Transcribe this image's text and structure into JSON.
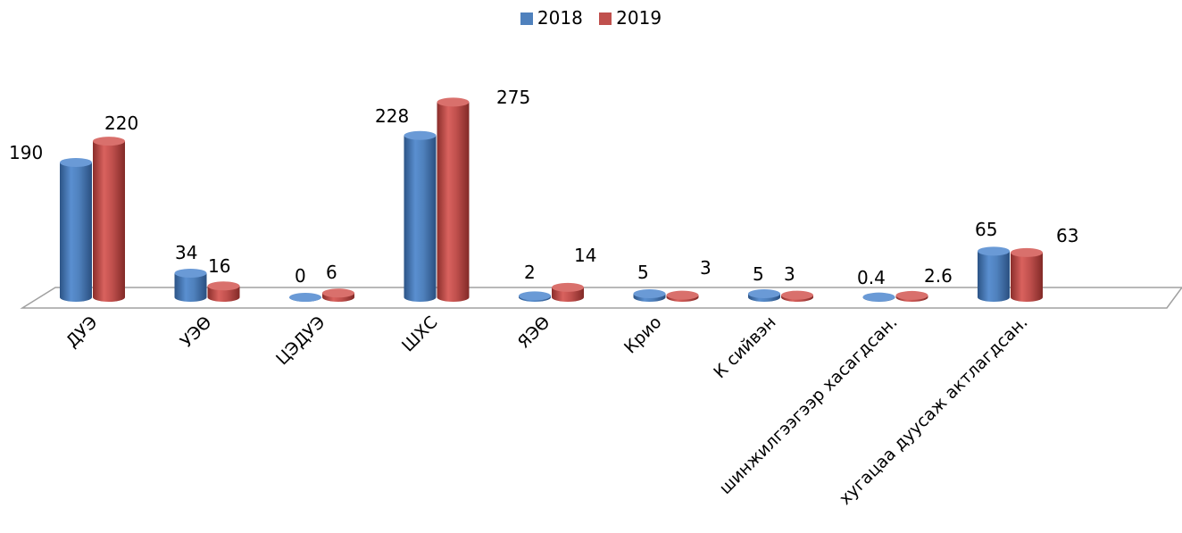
{
  "chart_data": {
    "type": "bar",
    "style": "3d-cylinder",
    "title": "",
    "xlabel": "",
    "ylabel": "",
    "categories": [
      "ДУЭ",
      "УЭӨ",
      "ЦЭДУЭ",
      "ШХС",
      "ЯЭӨ",
      "Крио",
      "К сийвэн",
      "шинжилгээгээр хасагдсан.",
      "хугацаа дуусаж актлагдсан."
    ],
    "series": [
      {
        "name": "2018",
        "color": "#4F81BD",
        "values": [
          190,
          34,
          0,
          228,
          2,
          5,
          5,
          0.4,
          65
        ],
        "data_labels": [
          "190",
          "34",
          "0",
          "228",
          "2",
          "5",
          "5",
          "0.4",
          "65"
        ]
      },
      {
        "name": "2019",
        "color": "#C0504D",
        "values": [
          220,
          16,
          6,
          275,
          14,
          3,
          3,
          2.6,
          63
        ],
        "data_labels": [
          "220",
          "16",
          "6",
          "275",
          "14",
          "3",
          "3",
          "2.6",
          "63"
        ]
      }
    ],
    "ylim": [
      0,
      275
    ],
    "grid": false,
    "legend": "top-center"
  }
}
